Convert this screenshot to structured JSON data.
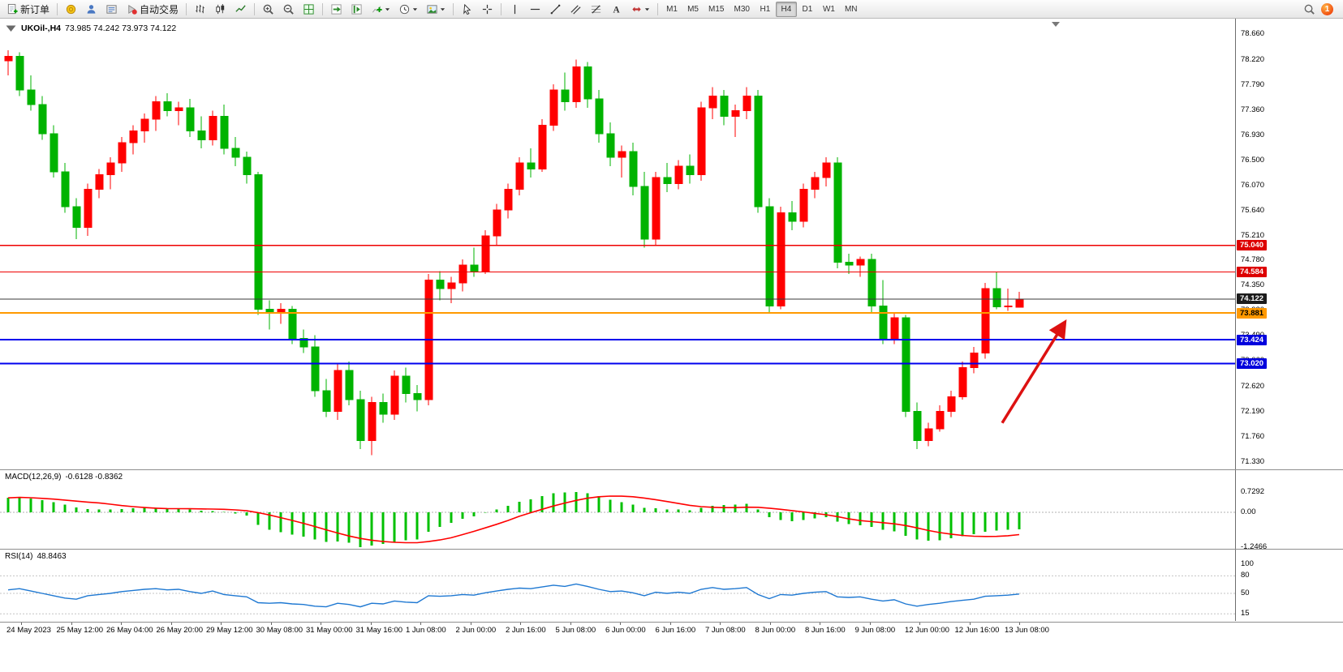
{
  "toolbar": {
    "items": [
      {
        "type": "button",
        "name": "new-order-button",
        "icon": "new-order-icon",
        "label": "新订单"
      },
      {
        "type": "sep"
      },
      {
        "type": "button",
        "name": "market-watch-button",
        "icon": "market-watch-icon"
      },
      {
        "type": "button",
        "name": "navigator-button",
        "icon": "navigator-icon"
      },
      {
        "type": "button",
        "name": "terminal-button",
        "icon": "terminal-icon"
      },
      {
        "type": "button",
        "name": "autotrading-button",
        "icon": "autotrading-icon",
        "label": "自动交易"
      },
      {
        "type": "sep"
      },
      {
        "type": "button",
        "name": "bar-chart-button",
        "icon": "bar-chart-icon"
      },
      {
        "type": "button",
        "name": "candlestick-button",
        "icon": "candlestick-icon"
      },
      {
        "type": "button",
        "name": "line-chart-button",
        "icon": "line-chart-icon"
      },
      {
        "type": "sep"
      },
      {
        "type": "button",
        "name": "zoom-in-button",
        "icon": "zoom-in-icon"
      },
      {
        "type": "button",
        "name": "zoom-out-button",
        "icon": "zoom-out-icon"
      },
      {
        "type": "button",
        "name": "tile-windows-button",
        "icon": "tile-windows-icon"
      },
      {
        "type": "sep"
      },
      {
        "type": "button",
        "name": "auto-scroll-button",
        "icon": "auto-scroll-icon"
      },
      {
        "type": "button",
        "name": "chart-shift-button",
        "icon": "chart-shift-icon"
      },
      {
        "type": "button",
        "name": "indicators-button",
        "icon": "indicators-icon",
        "caret": true
      },
      {
        "type": "button",
        "name": "periods-button",
        "icon": "clock-icon",
        "caret": true
      },
      {
        "type": "button",
        "name": "templates-button",
        "icon": "template-icon",
        "caret": true
      },
      {
        "type": "sep"
      },
      {
        "type": "button",
        "name": "cursor-button",
        "icon": "cursor-icon"
      },
      {
        "type": "button",
        "name": "crosshair-button",
        "icon": "crosshair-icon"
      },
      {
        "type": "sep"
      },
      {
        "type": "button",
        "name": "vertical-line-button",
        "icon": "vline-icon"
      },
      {
        "type": "button",
        "name": "horizontal-line-button",
        "icon": "hline-icon"
      },
      {
        "type": "button",
        "name": "trendline-button",
        "icon": "trendline-icon"
      },
      {
        "type": "button",
        "name": "channel-button",
        "icon": "channel-icon"
      },
      {
        "type": "button",
        "name": "fibonacci-button",
        "icon": "fibonacci-icon"
      },
      {
        "type": "button",
        "name": "text-label-button",
        "icon": "text-icon"
      },
      {
        "type": "button",
        "name": "arrows-button",
        "icon": "arrows-icon",
        "caret": true
      },
      {
        "type": "sep"
      }
    ],
    "timeframes": [
      {
        "label": "M1"
      },
      {
        "label": "M5"
      },
      {
        "label": "M15"
      },
      {
        "label": "M30"
      },
      {
        "label": "H1"
      },
      {
        "label": "H4",
        "active": true
      },
      {
        "label": "D1"
      },
      {
        "label": "W1"
      },
      {
        "label": "MN"
      }
    ],
    "right": {
      "badge": "1"
    }
  },
  "chart": {
    "symbol_title": "UKOil-,H4",
    "ohlc_text": "73.985 74.242 73.973 74.122"
  },
  "indicators": {
    "macd": {
      "label": "MACD(12,26,9)",
      "values": "-0.6128 -0.8362",
      "axis": [
        "0.7292",
        "0.00",
        "-1.2466"
      ]
    },
    "rsi": {
      "label": "RSI(14)",
      "values": "48.8463",
      "axis": [
        "100",
        "80",
        "50",
        "15"
      ]
    }
  },
  "chart_data": {
    "type": "candlestick",
    "title": "UKOil-,H4",
    "timeframe": "H4",
    "ylim": [
      71.33,
      78.66
    ],
    "price_ticks": [
      "78.660",
      "78.220",
      "77.790",
      "77.360",
      "76.930",
      "76.500",
      "76.070",
      "75.640",
      "75.210",
      "74.780",
      "74.350",
      "73.920",
      "73.490",
      "73.060",
      "72.620",
      "72.190",
      "71.760",
      "71.330"
    ],
    "price_tags": [
      {
        "text": "75.040",
        "price": 75.04,
        "bg": "#dd0000",
        "fg": "#ffffff"
      },
      {
        "text": "74.584",
        "price": 74.584,
        "bg": "#dd0000",
        "fg": "#ffffff"
      },
      {
        "text": "74.122",
        "price": 74.122,
        "bg": "#1c1c1c",
        "fg": "#ffffff"
      },
      {
        "text": "73.881",
        "price": 73.881,
        "bg": "#ff9900",
        "fg": "#000000"
      },
      {
        "text": "73.424",
        "price": 73.424,
        "bg": "#0000dd",
        "fg": "#ffffff"
      },
      {
        "text": "73.020",
        "price": 73.02,
        "bg": "#0000dd",
        "fg": "#ffffff"
      }
    ],
    "hlines": [
      {
        "price": 75.04,
        "color": "#ee0000",
        "width": 1.2
      },
      {
        "price": 74.584,
        "color": "#ee0000",
        "width": 1.2
      },
      {
        "price": 74.122,
        "color": "#3a3a3a",
        "width": 1
      },
      {
        "price": 73.881,
        "color": "#ff9900",
        "width": 2
      },
      {
        "price": 73.424,
        "color": "#0000ee",
        "width": 2
      },
      {
        "price": 73.02,
        "color": "#0000ee",
        "width": 2
      }
    ],
    "colors": {
      "bull": "#ff0000",
      "bear": "#00b300",
      "macd_hist": "#00c000",
      "macd_signal": "#ff0000",
      "rsi_line": "#1e78d2",
      "arrow": "#dd1111"
    },
    "annotation_arrow": {
      "from_index": 87.5,
      "from_price": 72.0,
      "to_index": 93,
      "to_price": 73.72
    },
    "candles": [
      [
        78.2,
        78.38,
        77.95,
        78.28
      ],
      [
        78.28,
        78.35,
        77.6,
        77.7
      ],
      [
        77.7,
        77.95,
        77.35,
        77.45
      ],
      [
        77.45,
        77.6,
        76.85,
        76.95
      ],
      [
        76.95,
        77.1,
        76.2,
        76.3
      ],
      [
        76.3,
        76.45,
        75.6,
        75.7
      ],
      [
        75.7,
        75.85,
        75.15,
        75.35
      ],
      [
        75.35,
        76.1,
        75.2,
        76.0
      ],
      [
        76.0,
        76.35,
        75.85,
        76.25
      ],
      [
        76.25,
        76.55,
        76.0,
        76.45
      ],
      [
        76.45,
        76.9,
        76.3,
        76.8
      ],
      [
        76.8,
        77.1,
        76.6,
        77.0
      ],
      [
        77.0,
        77.3,
        76.8,
        77.2
      ],
      [
        77.2,
        77.6,
        77.0,
        77.5
      ],
      [
        77.5,
        77.65,
        77.25,
        77.35
      ],
      [
        77.35,
        77.5,
        77.1,
        77.4
      ],
      [
        77.4,
        77.55,
        76.9,
        77.0
      ],
      [
        77.0,
        77.25,
        76.7,
        76.85
      ],
      [
        76.85,
        77.35,
        76.75,
        77.25
      ],
      [
        77.25,
        77.45,
        76.6,
        76.7
      ],
      [
        76.7,
        76.9,
        76.4,
        76.55
      ],
      [
        76.55,
        76.65,
        76.1,
        76.25
      ],
      [
        76.25,
        76.3,
        73.85,
        73.95
      ],
      [
        73.95,
        74.1,
        73.6,
        73.9
      ],
      [
        73.9,
        74.05,
        73.7,
        73.95
      ],
      [
        73.95,
        74.0,
        73.35,
        73.45
      ],
      [
        73.45,
        73.6,
        73.2,
        73.3
      ],
      [
        73.3,
        73.5,
        72.45,
        72.55
      ],
      [
        72.55,
        72.75,
        72.1,
        72.2
      ],
      [
        72.2,
        73.0,
        72.05,
        72.9
      ],
      [
        72.9,
        73.05,
        72.3,
        72.4
      ],
      [
        72.4,
        72.55,
        71.55,
        71.7
      ],
      [
        71.7,
        72.45,
        71.45,
        72.35
      ],
      [
        72.35,
        72.5,
        72.0,
        72.15
      ],
      [
        72.15,
        72.9,
        72.05,
        72.8
      ],
      [
        72.8,
        72.95,
        72.35,
        72.5
      ],
      [
        72.5,
        72.65,
        72.2,
        72.4
      ],
      [
        72.4,
        74.55,
        72.3,
        74.45
      ],
      [
        74.45,
        74.6,
        74.1,
        74.3
      ],
      [
        74.3,
        74.5,
        74.05,
        74.4
      ],
      [
        74.4,
        74.8,
        74.25,
        74.7
      ],
      [
        74.7,
        75.0,
        74.5,
        74.6
      ],
      [
        74.6,
        75.3,
        74.55,
        75.2
      ],
      [
        75.2,
        75.75,
        75.05,
        75.65
      ],
      [
        75.65,
        76.1,
        75.5,
        76.0
      ],
      [
        76.0,
        76.55,
        75.9,
        76.45
      ],
      [
        76.45,
        76.7,
        76.2,
        76.35
      ],
      [
        76.35,
        77.2,
        76.3,
        77.1
      ],
      [
        77.1,
        77.8,
        77.0,
        77.7
      ],
      [
        77.7,
        78.0,
        77.35,
        77.5
      ],
      [
        77.5,
        78.22,
        77.4,
        78.1
      ],
      [
        78.1,
        78.18,
        77.4,
        77.55
      ],
      [
        77.55,
        77.7,
        76.8,
        76.95
      ],
      [
        76.95,
        77.15,
        76.4,
        76.55
      ],
      [
        76.55,
        76.75,
        76.2,
        76.65
      ],
      [
        76.65,
        76.8,
        75.9,
        76.05
      ],
      [
        76.05,
        76.3,
        75.0,
        75.15
      ],
      [
        75.15,
        76.3,
        75.05,
        76.2
      ],
      [
        76.2,
        76.45,
        75.95,
        76.1
      ],
      [
        76.1,
        76.5,
        76.0,
        76.4
      ],
      [
        76.4,
        76.6,
        76.1,
        76.25
      ],
      [
        76.25,
        77.5,
        76.15,
        77.4
      ],
      [
        77.4,
        77.75,
        77.2,
        77.6
      ],
      [
        77.6,
        77.7,
        77.1,
        77.25
      ],
      [
        77.25,
        77.45,
        76.9,
        77.35
      ],
      [
        77.35,
        77.75,
        77.2,
        77.6
      ],
      [
        77.6,
        77.7,
        75.6,
        75.7
      ],
      [
        75.7,
        75.85,
        73.9,
        74.0
      ],
      [
        74.0,
        75.7,
        73.95,
        75.6
      ],
      [
        75.6,
        75.8,
        75.3,
        75.45
      ],
      [
        75.45,
        76.1,
        75.35,
        76.0
      ],
      [
        76.0,
        76.3,
        75.85,
        76.2
      ],
      [
        76.2,
        76.55,
        76.05,
        76.45
      ],
      [
        76.45,
        76.55,
        74.65,
        74.75
      ],
      [
        74.75,
        74.9,
        74.55,
        74.7
      ],
      [
        74.7,
        74.85,
        74.5,
        74.8
      ],
      [
        74.8,
        74.9,
        73.9,
        74.0
      ],
      [
        74.0,
        74.45,
        73.35,
        73.45
      ],
      [
        73.45,
        73.9,
        73.35,
        73.8
      ],
      [
        73.8,
        73.85,
        72.1,
        72.2
      ],
      [
        72.2,
        72.35,
        71.55,
        71.7
      ],
      [
        71.7,
        72.0,
        71.6,
        71.9
      ],
      [
        71.9,
        72.3,
        71.85,
        72.2
      ],
      [
        72.2,
        72.55,
        72.1,
        72.45
      ],
      [
        72.45,
        73.05,
        72.4,
        72.95
      ],
      [
        72.95,
        73.3,
        72.85,
        73.2
      ],
      [
        73.2,
        74.4,
        73.1,
        74.3
      ],
      [
        74.3,
        74.58,
        73.95,
        73.99
      ],
      [
        73.99,
        74.3,
        73.92,
        74.0
      ],
      [
        73.985,
        74.242,
        73.973,
        74.122
      ]
    ],
    "macd": {
      "ylim": [
        -1.2466,
        0.7292
      ],
      "values": [
        0.52,
        0.55,
        0.5,
        0.44,
        0.36,
        0.27,
        0.18,
        0.12,
        0.1,
        0.1,
        0.12,
        0.14,
        0.16,
        0.16,
        0.14,
        0.13,
        0.1,
        0.06,
        0.05,
        0.02,
        -0.04,
        -0.12,
        -0.45,
        -0.62,
        -0.72,
        -0.8,
        -0.88,
        -0.98,
        -1.06,
        -1.05,
        -1.1,
        -1.2466,
        -1.2,
        -1.14,
        -1.06,
        -1.0,
        -0.98,
        -0.7,
        -0.52,
        -0.38,
        -0.24,
        -0.14,
        -0.02,
        0.1,
        0.24,
        0.38,
        0.46,
        0.58,
        0.68,
        0.71,
        0.7292,
        0.68,
        0.58,
        0.45,
        0.36,
        0.28,
        0.16,
        0.14,
        0.1,
        0.1,
        0.08,
        0.16,
        0.24,
        0.26,
        0.28,
        0.3,
        0.1,
        -0.18,
        -0.28,
        -0.32,
        -0.28,
        -0.22,
        -0.18,
        -0.34,
        -0.42,
        -0.46,
        -0.52,
        -0.62,
        -0.68,
        -0.85,
        -0.98,
        -1.02,
        -1.0,
        -0.94,
        -0.86,
        -0.78,
        -0.7,
        -0.66,
        -0.63,
        -0.6128
      ]
    },
    "rsi": {
      "ylim": [
        0,
        100
      ],
      "levels": [
        80,
        50,
        15
      ],
      "values": [
        56,
        58,
        54,
        50,
        46,
        42,
        40,
        46,
        48,
        50,
        53,
        55,
        57,
        58,
        56,
        57,
        53,
        50,
        54,
        48,
        46,
        44,
        34,
        33,
        34,
        32,
        31,
        28,
        27,
        33,
        31,
        27,
        33,
        32,
        37,
        35,
        34,
        46,
        45,
        46,
        48,
        47,
        51,
        54,
        57,
        59,
        58,
        61,
        64,
        62,
        66,
        62,
        57,
        53,
        54,
        51,
        46,
        52,
        50,
        52,
        50,
        57,
        60,
        57,
        58,
        60,
        48,
        41,
        48,
        47,
        50,
        52,
        53,
        44,
        43,
        44,
        40,
        37,
        39,
        32,
        28,
        31,
        33,
        36,
        38,
        40,
        45,
        46,
        47,
        48.85
      ]
    },
    "time_labels": [
      "24 May 2023",
      "25 May 12:00",
      "26 May 04:00",
      "26 May 20:00",
      "29 May 12:00",
      "30 May 08:00",
      "31 May 00:00",
      "31 May 16:00",
      "1 Jun 08:00",
      "2 Jun 00:00",
      "2 Jun 16:00",
      "5 Jun 08:00",
      "6 Jun 00:00",
      "6 Jun 16:00",
      "7 Jun 08:00",
      "8 Jun 00:00",
      "8 Jun 16:00",
      "9 Jun 08:00",
      "12 Jun 00:00",
      "12 Jun 16:00",
      "13 Jun 08:00"
    ]
  }
}
